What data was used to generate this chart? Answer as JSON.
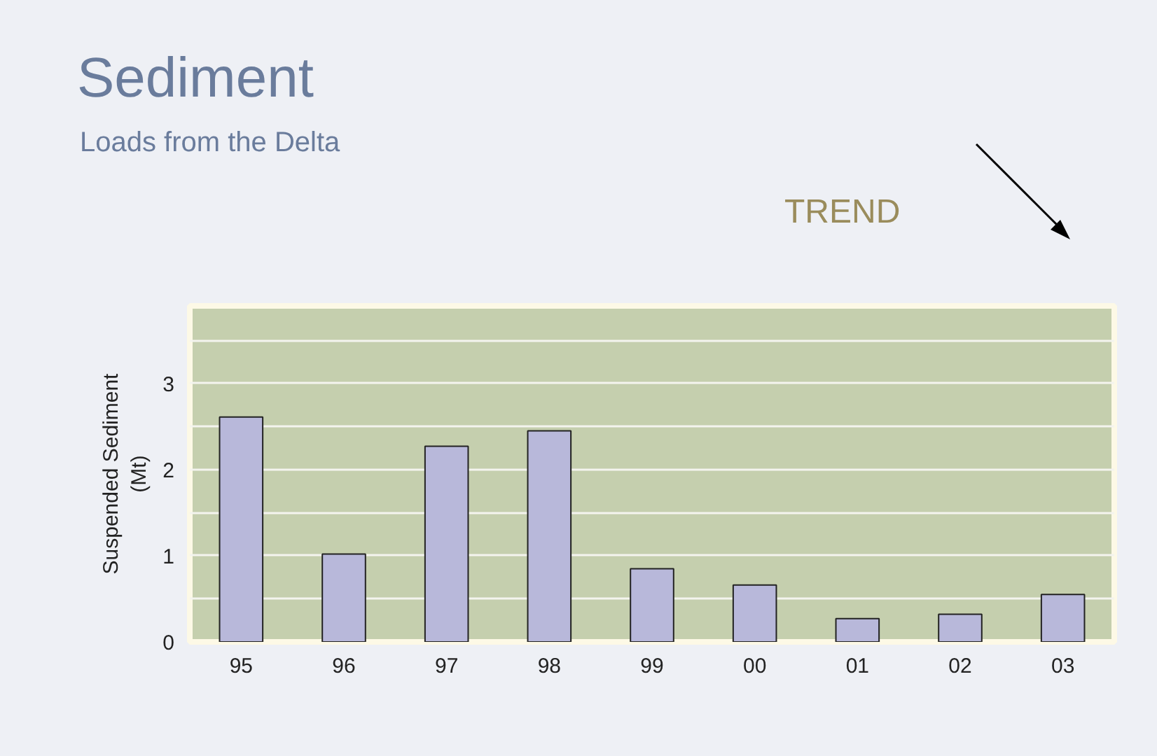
{
  "chart_data": {
    "type": "bar",
    "title": "Sediment",
    "subtitle": "Loads from the Delta",
    "ylabel": "Suspended Sediment\n(Mt)",
    "annotations": [
      "TREND"
    ],
    "categories": [
      "95",
      "96",
      "97",
      "98",
      "99",
      "00",
      "01",
      "02",
      "03"
    ],
    "values": [
      2.61,
      1.02,
      2.27,
      2.45,
      0.85,
      0.66,
      0.27,
      0.32,
      0.55
    ],
    "color": "#b8b8da",
    "ylim": [
      0,
      3.9
    ],
    "yticks": [
      0,
      {
        "value": 0.5,
        "label": null
      },
      1,
      {
        "value": 1.5,
        "label": null
      },
      2,
      {
        "value": 2.5,
        "label": null
      },
      3,
      {
        "value": 3.5,
        "label": null
      }
    ],
    "grid": "y"
  }
}
